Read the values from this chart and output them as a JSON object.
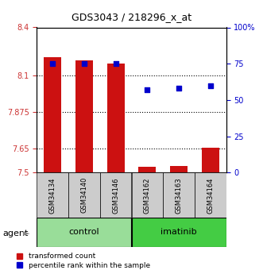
{
  "title": "GDS3043 / 218296_x_at",
  "samples": [
    "GSM34134",
    "GSM34140",
    "GSM34146",
    "GSM34162",
    "GSM34163",
    "GSM34164"
  ],
  "bar_values": [
    8.215,
    8.195,
    8.175,
    7.535,
    7.54,
    7.655
  ],
  "bar_base": 7.5,
  "bar_color": "#cc1111",
  "blue_values": [
    75,
    75,
    75,
    57,
    58,
    60
  ],
  "blue_color": "#0000cc",
  "ylim_left": [
    7.5,
    8.4
  ],
  "ylim_right": [
    0,
    100
  ],
  "yticks_left": [
    7.5,
    7.65,
    7.875,
    8.1,
    8.4
  ],
  "ytick_labels_left": [
    "7.5",
    "7.65",
    "7.875",
    "8.1",
    "8.4"
  ],
  "yticks_right": [
    0,
    25,
    50,
    75,
    100
  ],
  "ytick_labels_right": [
    "0",
    "25",
    "50",
    "75",
    "100%"
  ],
  "hlines": [
    8.1,
    7.875,
    7.65
  ],
  "control_label": "control",
  "imatinib_label": "imatinib",
  "agent_label": "agent",
  "group_color_control": "#99dd99",
  "group_color_imatinib": "#44cc44",
  "sample_box_color": "#cccccc",
  "legend_bar_label": "transformed count",
  "legend_square_label": "percentile rank within the sample",
  "bar_width": 0.55,
  "fig_bg": "#ffffff"
}
